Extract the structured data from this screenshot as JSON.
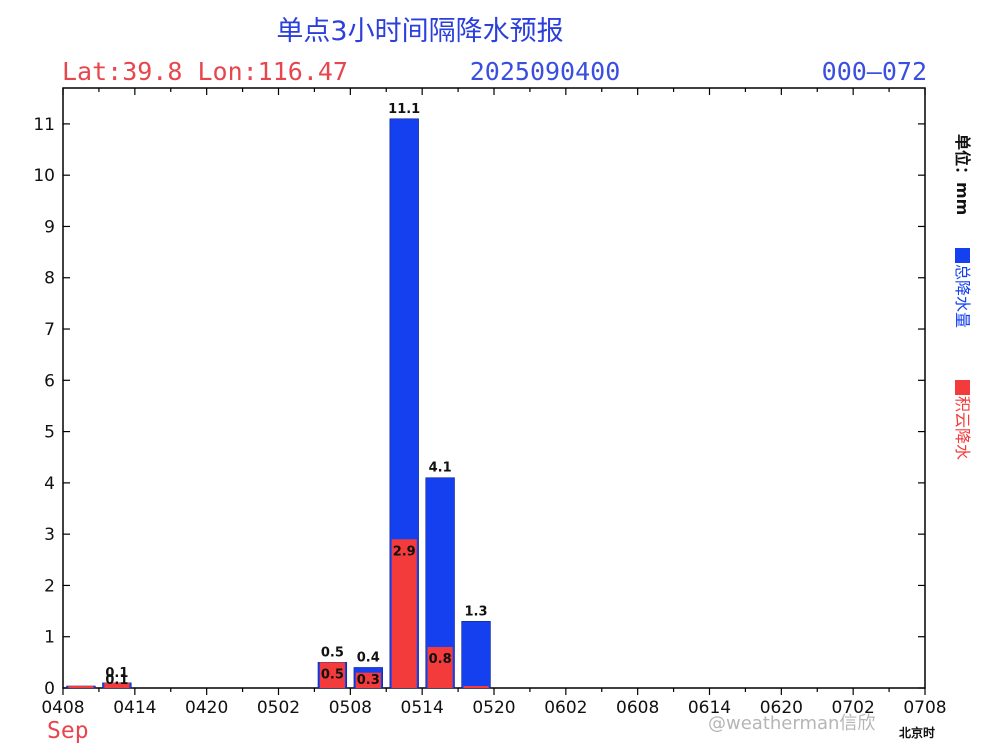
{
  "header": {
    "title": "单点3小时间隔降水预报",
    "location": "Lat:39.8 Lon:116.47",
    "init_time": "2025090400",
    "forecast_range": "000—072"
  },
  "sidebar": {
    "unit_label": "单位：mm",
    "legend_total": "总降水量",
    "legend_convective": "积云降水"
  },
  "footer": {
    "month": "Sep",
    "time_zone": "北京时",
    "watermark": "@weatherman信欣"
  },
  "colors": {
    "title": "#2b3fdc",
    "location": "#e8464e",
    "init_time": "#3a4fe0",
    "forecast_range": "#3a4fe0",
    "total_bar": "#1440f0",
    "convective_bar": "#f43b3c",
    "month": "#e8464e"
  },
  "chart_data": {
    "type": "bar",
    "title": "单点3小时间隔降水预报",
    "ylabel": "单位：mm",
    "xlabel": "北京时",
    "ylim": [
      0,
      11.7
    ],
    "yticks": [
      0,
      1,
      2,
      3,
      4,
      5,
      6,
      7,
      8,
      9,
      10,
      11
    ],
    "x_tick_labels": [
      "0408",
      "0414",
      "0420",
      "0502",
      "0508",
      "0514",
      "0520",
      "0602",
      "0608",
      "0614",
      "0620",
      "0702",
      "0708"
    ],
    "categories": [
      "0408",
      "0411",
      "0414",
      "0417",
      "0420",
      "0423",
      "0502",
      "0505",
      "0508",
      "0511",
      "0514",
      "0517",
      "0520",
      "0523",
      "0602",
      "0605",
      "0608",
      "0611",
      "0614",
      "0617",
      "0620",
      "0623",
      "0702",
      "0705"
    ],
    "series": [
      {
        "name": "总降水量",
        "color": "#1440f0",
        "values": [
          0.02,
          0.1,
          0,
          0,
          0,
          0,
          0,
          0.5,
          0.4,
          11.1,
          4.1,
          1.3,
          0,
          0,
          0,
          0,
          0,
          0,
          0,
          0,
          0,
          0,
          0,
          0
        ],
        "labels": [
          "",
          "0.1",
          "",
          "",
          "",
          "",
          "",
          "0.5",
          "0.4",
          "11.1",
          "4.1",
          "1.3",
          "",
          "",
          "",
          "",
          "",
          "",
          "",
          "",
          "",
          "",
          "",
          ""
        ]
      },
      {
        "name": "积云降水",
        "color": "#f43b3c",
        "values": [
          0.02,
          0.1,
          0,
          0,
          0,
          0,
          0,
          0.5,
          0.3,
          2.9,
          0.8,
          0.02,
          0,
          0,
          0,
          0,
          0,
          0,
          0,
          0,
          0,
          0,
          0,
          0
        ],
        "labels": [
          "",
          "0.1",
          "",
          "",
          "",
          "",
          "",
          "0.5",
          "0.3",
          "2.9",
          "0.8",
          "",
          "",
          "",
          "",
          "",
          "",
          "",
          "",
          "",
          "",
          "",
          "",
          ""
        ]
      }
    ]
  }
}
